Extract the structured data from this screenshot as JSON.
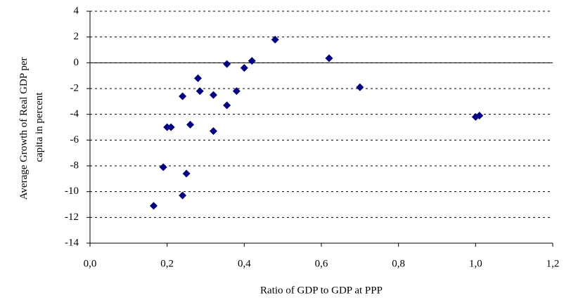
{
  "chart_data": {
    "type": "scatter",
    "xlabel": "Ratio of GDP to GDP at PPP",
    "ylabel": [
      "Average Growth of Real GDP per",
      "capita in percent"
    ],
    "series": [
      {
        "color": "#000080",
        "x": [
          0.165,
          0.19,
          0.2,
          0.21,
          0.24,
          0.24,
          0.25,
          0.26,
          0.28,
          0.285,
          0.32,
          0.32,
          0.355,
          0.355,
          0.38,
          0.4,
          0.42,
          0.48,
          0.62,
          0.7,
          1.0,
          1.01
        ],
        "values": [
          -11.1,
          -8.1,
          -5.0,
          -5.0,
          -2.6,
          -10.3,
          -8.6,
          -4.8,
          -1.2,
          -2.2,
          -2.5,
          -5.3,
          -0.1,
          -3.3,
          -2.2,
          -0.4,
          0.15,
          1.8,
          0.35,
          -1.9,
          -4.2,
          -4.1
        ]
      }
    ],
    "xlim": [
      0,
      1.2
    ],
    "xticks": [
      {
        "value": 0,
        "label": "0,0"
      },
      {
        "value": 0.2,
        "label": "0,2"
      },
      {
        "value": 0.4,
        "label": "0,4"
      },
      {
        "value": 0.6,
        "label": "0,6"
      },
      {
        "value": 0.8,
        "label": "0,8"
      },
      {
        "value": 1.0,
        "label": "1,0"
      },
      {
        "value": 1.2,
        "label": "1,2"
      }
    ],
    "ylim": [
      -14,
      4
    ],
    "yticks": [
      -14,
      -12,
      -10,
      -8,
      -6,
      -4,
      -2,
      0,
      2,
      4
    ],
    "grid": true
  }
}
